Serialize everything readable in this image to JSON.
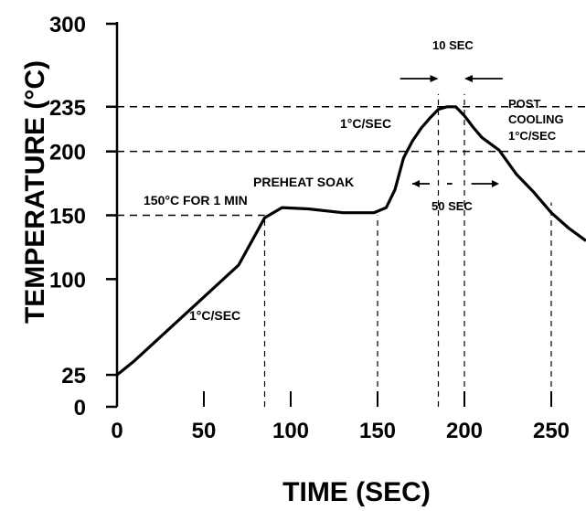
{
  "chart_data": {
    "type": "line",
    "xlabel": "TIME (SEC)",
    "ylabel": "TEMPERATURE (°C)",
    "xlim": [
      0,
      270
    ],
    "ylim": [
      0,
      300
    ],
    "x_ticks": [
      0,
      50,
      100,
      150,
      200,
      250
    ],
    "x_tick_labels": [
      "0",
      "50",
      "100",
      "150",
      "200",
      "250"
    ],
    "y_ticks": [
      0,
      25,
      100,
      150,
      200,
      235,
      300
    ],
    "y_tick_labels": [
      "0",
      "25",
      "100",
      "150",
      "200",
      "235",
      "300"
    ],
    "grid": false,
    "reference_lines": {
      "horizontal": [
        235,
        200,
        150
      ],
      "vertical": [
        85,
        150,
        185,
        200,
        250
      ]
    },
    "series": [
      {
        "x": [
          0,
          10,
          30,
          50,
          70,
          85,
          95,
          110,
          130,
          148,
          155,
          160,
          165,
          170,
          175,
          180,
          185,
          190,
          195,
          200,
          205,
          210,
          215,
          220,
          230,
          240,
          250,
          260,
          270
        ],
        "y": [
          25,
          36,
          61,
          86,
          111,
          148,
          156,
          155,
          152,
          152,
          156,
          170,
          195,
          208,
          218,
          226,
          233,
          235,
          235,
          228,
          219,
          211,
          206,
          201,
          182,
          168,
          152,
          140,
          130
        ]
      }
    ],
    "annotations": [
      "1°C/SEC",
      "150°C FOR 1 MIN",
      "PREHEAT SOAK",
      "1°C/SEC",
      "10 SEC",
      "50 SEC",
      "POST",
      "COOLING",
      "1°C/SEC"
    ]
  }
}
